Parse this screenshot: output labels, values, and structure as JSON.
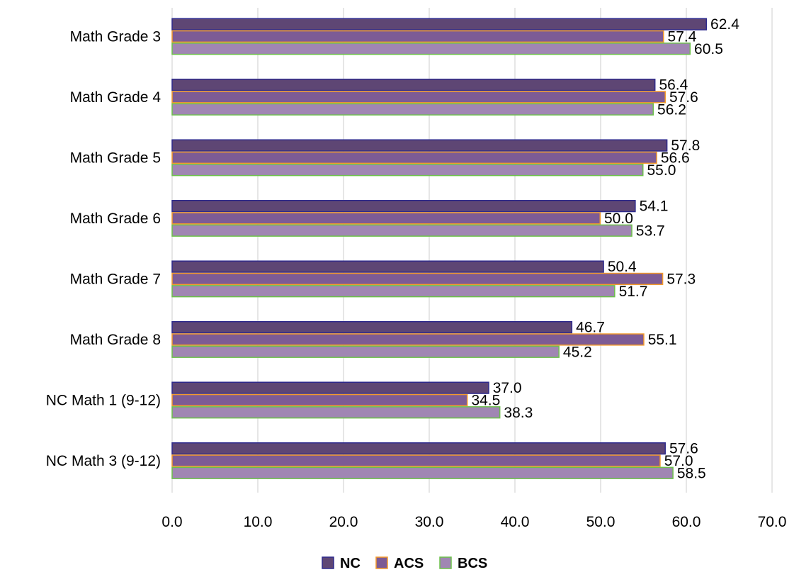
{
  "chart_data": {
    "type": "bar",
    "orientation": "horizontal",
    "categories": [
      "Math Grade 3",
      "Math Grade 4",
      "Math Grade 5",
      "Math Grade 6",
      "Math Grade 7",
      "Math Grade 8",
      "NC Math 1 (9-12)",
      "NC Math 3 (9-12)"
    ],
    "series": [
      {
        "name": "NC",
        "values": [
          62.4,
          56.4,
          57.8,
          54.1,
          50.4,
          46.7,
          37.0,
          57.6
        ],
        "labels": [
          "62.4",
          "56.4",
          "57.8",
          "54.1",
          "50.4",
          "46.7",
          "37.0",
          "57.6"
        ],
        "fill": "#5e4674",
        "stroke": "#2e2a8c"
      },
      {
        "name": "ACS",
        "values": [
          57.4,
          57.6,
          56.6,
          50.0,
          57.3,
          55.1,
          34.5,
          57.0
        ],
        "labels": [
          "57.4",
          "57.6",
          "56.6",
          "50.0",
          "57.3",
          "55.1",
          "34.5",
          "57.0"
        ],
        "fill": "#7d5b95",
        "stroke": "#f39a2c"
      },
      {
        "name": "BCS",
        "values": [
          60.5,
          56.2,
          55.0,
          53.7,
          51.7,
          45.2,
          38.3,
          58.5
        ],
        "labels": [
          "60.5",
          "56.2",
          "55.0",
          "53.7",
          "51.7",
          "45.2",
          "38.3",
          "58.5"
        ],
        "fill": "#a086b3",
        "stroke": "#6cc04a"
      }
    ],
    "xlim": [
      0,
      70
    ],
    "xticks": [
      0,
      10,
      20,
      30,
      40,
      50,
      60,
      70
    ],
    "xtick_labels": [
      "0.0",
      "10.0",
      "20.0",
      "30.0",
      "40.0",
      "50.0",
      "60.0",
      "70.0"
    ],
    "title": "",
    "xlabel": "",
    "ylabel": "",
    "grid": true,
    "legend_position": "bottom"
  }
}
